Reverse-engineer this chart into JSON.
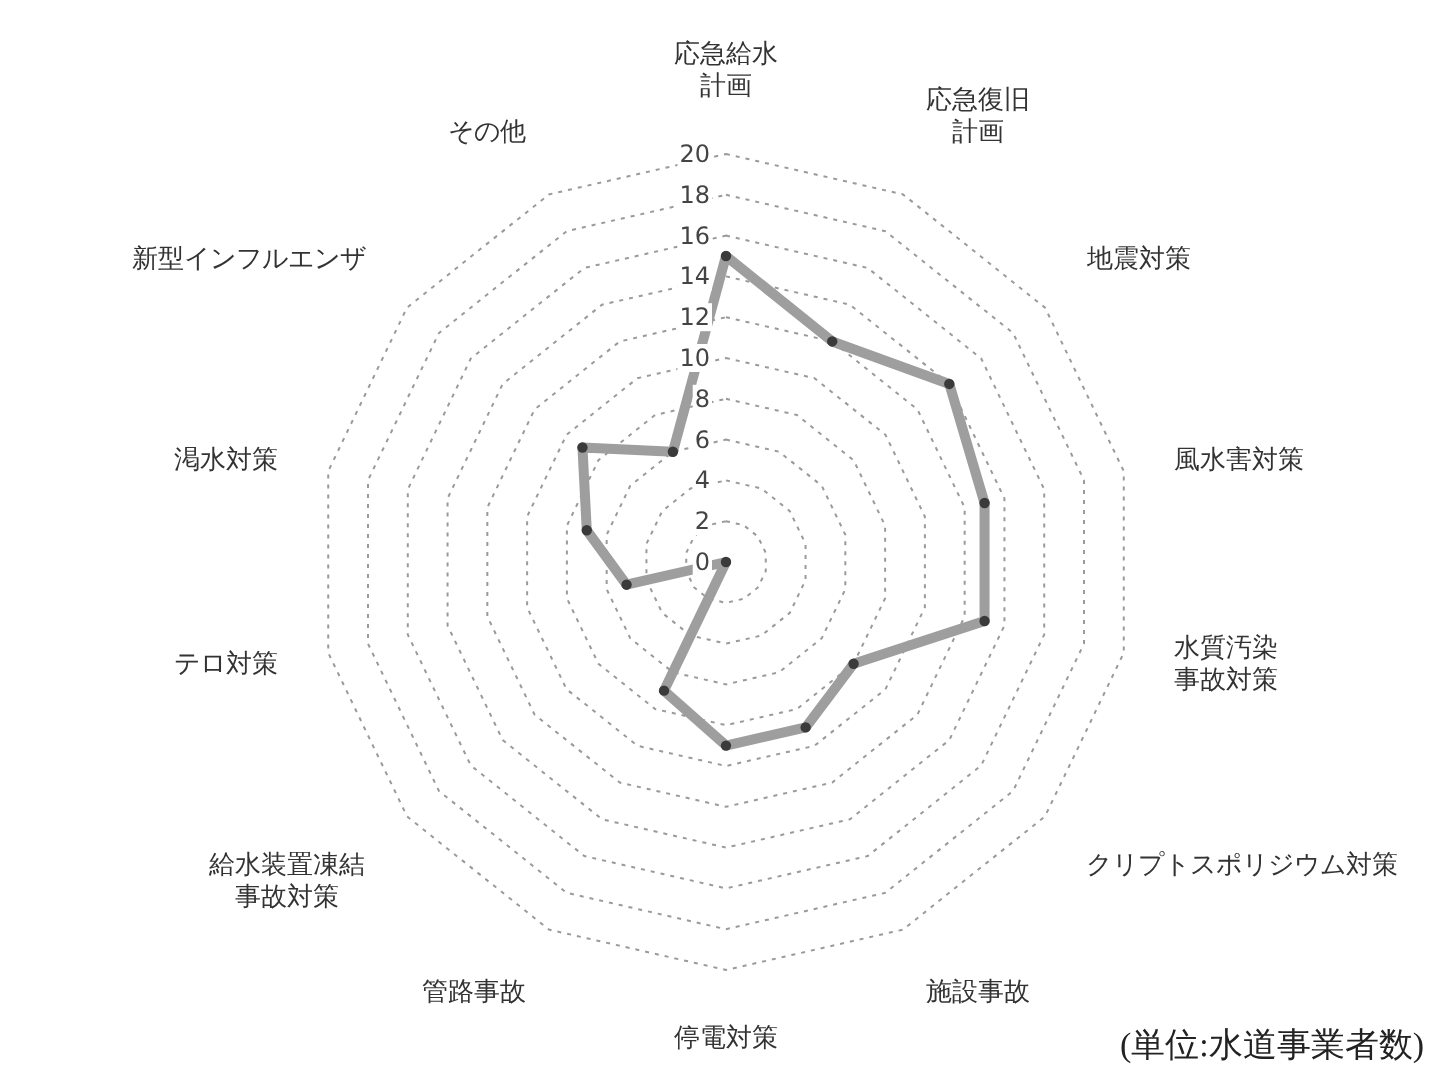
{
  "chart_data": {
    "type": "radar",
    "categories": [
      "応急給水計画",
      "応急復旧計画",
      "地震対策",
      "風水害対策",
      "水質汚染事故対策",
      "クリプトスポリジウム対策",
      "施設事故",
      "停電対策",
      "管路事故",
      "給水装置凍結事故対策",
      "テロ対策",
      "渇水対策",
      "新型インフルエンザ",
      "その他"
    ],
    "series": [
      {
        "color": "#9e9e9e",
        "values": [
          15,
          12,
          14,
          13,
          13,
          8,
          9,
          9,
          7,
          0,
          5,
          7,
          9,
          6
        ]
      }
    ],
    "ylim": [
      0,
      20
    ],
    "yticks": [
      0,
      2,
      4,
      6,
      8,
      10,
      12,
      14,
      16,
      18,
      20
    ],
    "grid": true,
    "marker": "circle",
    "line_style": "solid",
    "annotations": [
      "(単位:水道事業者数)"
    ]
  }
}
